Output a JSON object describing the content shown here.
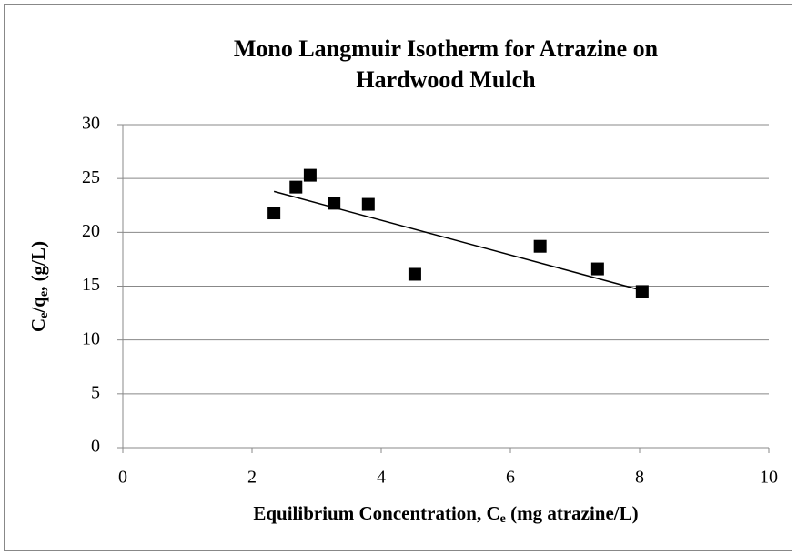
{
  "chart_data": {
    "type": "scatter",
    "title": [
      "Mono Langmuir Isotherm for Atrazine on",
      "Hardwood Mulch"
    ],
    "xlabel": [
      {
        "text": "Equilibrium Concentration, C"
      },
      {
        "text": "e",
        "sub": true
      },
      {
        "text": " (mg atrazine/L)"
      }
    ],
    "ylabel": [
      {
        "text": "C"
      },
      {
        "text": "e",
        "sub": true
      },
      {
        "text": "/q"
      },
      {
        "text": "e",
        "sub": true
      },
      {
        "text": ", (g/L)"
      }
    ],
    "x": [
      2.34,
      2.68,
      2.9,
      3.27,
      3.8,
      4.52,
      6.46,
      7.35,
      8.04
    ],
    "values": [
      21.8,
      24.2,
      25.3,
      22.7,
      22.6,
      16.1,
      18.7,
      16.6,
      14.5
    ],
    "color": "#000000",
    "trendline": {
      "x": [
        2.34,
        8.04
      ],
      "values": [
        23.8,
        14.6
      ],
      "color": "#000000"
    },
    "xlim": [
      0,
      10
    ],
    "xticks": [
      0,
      2,
      4,
      6,
      8,
      10
    ],
    "ylim": [
      0,
      30
    ],
    "yticks": [
      0,
      5,
      10,
      15,
      20,
      25,
      30
    ],
    "grid": true
  }
}
